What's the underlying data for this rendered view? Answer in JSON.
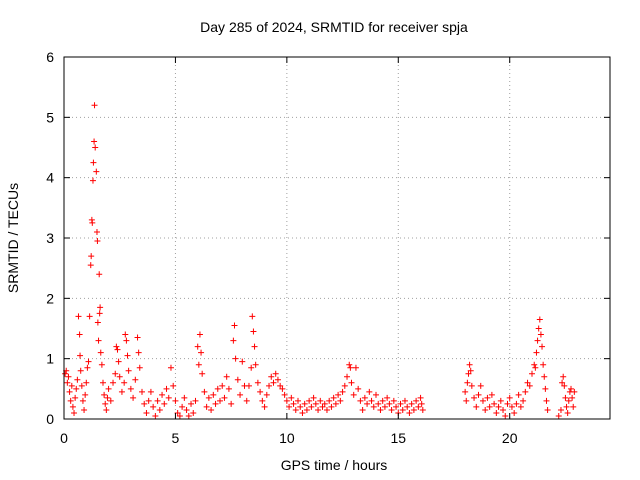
{
  "chart_data": {
    "type": "scatter",
    "title": "Day 285 of 2024, SRMTID for receiver spja",
    "xlabel": "GPS time / hours",
    "ylabel": "SRMTID / TECUs",
    "xlim": [
      0,
      24.5
    ],
    "ylim": [
      0,
      6
    ],
    "xticks": [
      0,
      5,
      10,
      15,
      20
    ],
    "yticks": [
      0,
      1,
      2,
      3,
      4,
      5,
      6
    ],
    "grid": true,
    "marker": "+",
    "color": "#ff0000",
    "series": [
      {
        "name": "SRMTID",
        "points": [
          [
            0.05,
            0.75
          ],
          [
            0.1,
            0.8
          ],
          [
            0.15,
            0.6
          ],
          [
            0.2,
            0.7
          ],
          [
            0.25,
            0.45
          ],
          [
            0.3,
            0.3
          ],
          [
            0.35,
            0.55
          ],
          [
            0.4,
            0.2
          ],
          [
            0.45,
            0.1
          ],
          [
            0.5,
            0.35
          ],
          [
            0.55,
            0.5
          ],
          [
            0.6,
            0.65
          ],
          [
            0.65,
            1.7
          ],
          [
            0.7,
            1.4
          ],
          [
            0.72,
            1.05
          ],
          [
            0.75,
            0.8
          ],
          [
            0.8,
            0.55
          ],
          [
            0.85,
            0.3
          ],
          [
            0.9,
            0.15
          ],
          [
            0.95,
            0.4
          ],
          [
            1.0,
            0.6
          ],
          [
            1.05,
            0.85
          ],
          [
            1.1,
            0.95
          ],
          [
            1.15,
            1.7
          ],
          [
            1.2,
            2.55
          ],
          [
            1.22,
            2.7
          ],
          [
            1.25,
            3.3
          ],
          [
            1.27,
            3.25
          ],
          [
            1.3,
            3.95
          ],
          [
            1.32,
            4.25
          ],
          [
            1.35,
            4.6
          ],
          [
            1.37,
            5.2
          ],
          [
            1.4,
            4.5
          ],
          [
            1.45,
            4.1
          ],
          [
            1.48,
            3.1
          ],
          [
            1.5,
            2.95
          ],
          [
            1.52,
            1.6
          ],
          [
            1.55,
            1.3
          ],
          [
            1.58,
            2.4
          ],
          [
            1.6,
            1.75
          ],
          [
            1.62,
            1.85
          ],
          [
            1.65,
            1.1
          ],
          [
            1.7,
            0.9
          ],
          [
            1.75,
            0.6
          ],
          [
            1.8,
            0.4
          ],
          [
            1.85,
            0.25
          ],
          [
            1.9,
            0.15
          ],
          [
            1.95,
            0.35
          ],
          [
            2.0,
            0.5
          ],
          [
            2.1,
            0.3
          ],
          [
            2.2,
            0.6
          ],
          [
            2.3,
            0.75
          ],
          [
            2.35,
            1.2
          ],
          [
            2.4,
            1.15
          ],
          [
            2.45,
            0.95
          ],
          [
            2.5,
            0.7
          ],
          [
            2.6,
            0.45
          ],
          [
            2.7,
            0.6
          ],
          [
            2.75,
            1.4
          ],
          [
            2.8,
            1.3
          ],
          [
            2.85,
            1.05
          ],
          [
            2.9,
            0.8
          ],
          [
            3.0,
            0.5
          ],
          [
            3.1,
            0.35
          ],
          [
            3.2,
            0.65
          ],
          [
            3.3,
            1.35
          ],
          [
            3.35,
            1.1
          ],
          [
            3.4,
            0.85
          ],
          [
            3.5,
            0.45
          ],
          [
            3.6,
            0.25
          ],
          [
            3.7,
            0.1
          ],
          [
            3.8,
            0.3
          ],
          [
            3.9,
            0.45
          ],
          [
            4.0,
            0.2
          ],
          [
            4.1,
            0.05
          ],
          [
            4.2,
            0.3
          ],
          [
            4.3,
            0.15
          ],
          [
            4.4,
            0.4
          ],
          [
            4.5,
            0.25
          ],
          [
            4.6,
            0.5
          ],
          [
            4.7,
            0.35
          ],
          [
            4.8,
            0.85
          ],
          [
            4.9,
            0.55
          ],
          [
            5.0,
            0.3
          ],
          [
            5.1,
            0.1
          ],
          [
            5.2,
            0.05
          ],
          [
            5.3,
            0.2
          ],
          [
            5.4,
            0.35
          ],
          [
            5.5,
            0.15
          ],
          [
            5.6,
            0.05
          ],
          [
            5.7,
            0.25
          ],
          [
            5.8,
            0.1
          ],
          [
            5.9,
            0.3
          ],
          [
            6.0,
            1.2
          ],
          [
            6.05,
            0.9
          ],
          [
            6.1,
            1.4
          ],
          [
            6.15,
            1.1
          ],
          [
            6.2,
            0.75
          ],
          [
            6.3,
            0.45
          ],
          [
            6.4,
            0.2
          ],
          [
            6.5,
            0.35
          ],
          [
            6.6,
            0.15
          ],
          [
            6.7,
            0.4
          ],
          [
            6.8,
            0.25
          ],
          [
            6.9,
            0.5
          ],
          [
            7.0,
            0.3
          ],
          [
            7.1,
            0.55
          ],
          [
            7.2,
            0.35
          ],
          [
            7.3,
            0.7
          ],
          [
            7.4,
            0.5
          ],
          [
            7.5,
            0.25
          ],
          [
            7.6,
            1.3
          ],
          [
            7.65,
            1.55
          ],
          [
            7.7,
            1.0
          ],
          [
            7.8,
            0.65
          ],
          [
            7.9,
            0.4
          ],
          [
            8.0,
            0.95
          ],
          [
            8.1,
            0.55
          ],
          [
            8.2,
            0.3
          ],
          [
            8.3,
            0.55
          ],
          [
            8.4,
            0.85
          ],
          [
            8.45,
            1.7
          ],
          [
            8.5,
            1.45
          ],
          [
            8.55,
            1.2
          ],
          [
            8.6,
            0.9
          ],
          [
            8.7,
            0.6
          ],
          [
            8.8,
            0.45
          ],
          [
            8.9,
            0.3
          ],
          [
            9.0,
            0.2
          ],
          [
            9.1,
            0.4
          ],
          [
            9.2,
            0.55
          ],
          [
            9.3,
            0.7
          ],
          [
            9.4,
            0.6
          ],
          [
            9.5,
            0.75
          ],
          [
            9.6,
            0.65
          ],
          [
            9.7,
            0.55
          ],
          [
            9.8,
            0.5
          ],
          [
            9.9,
            0.4
          ],
          [
            10.0,
            0.3
          ],
          [
            10.1,
            0.2
          ],
          [
            10.2,
            0.35
          ],
          [
            10.3,
            0.25
          ],
          [
            10.4,
            0.15
          ],
          [
            10.5,
            0.3
          ],
          [
            10.6,
            0.2
          ],
          [
            10.7,
            0.1
          ],
          [
            10.8,
            0.25
          ],
          [
            10.9,
            0.15
          ],
          [
            11.0,
            0.3
          ],
          [
            11.1,
            0.2
          ],
          [
            11.2,
            0.35
          ],
          [
            11.3,
            0.25
          ],
          [
            11.4,
            0.15
          ],
          [
            11.5,
            0.3
          ],
          [
            11.6,
            0.2
          ],
          [
            11.7,
            0.25
          ],
          [
            11.8,
            0.15
          ],
          [
            11.9,
            0.3
          ],
          [
            12.0,
            0.2
          ],
          [
            12.1,
            0.35
          ],
          [
            12.2,
            0.25
          ],
          [
            12.3,
            0.4
          ],
          [
            12.4,
            0.3
          ],
          [
            12.5,
            0.45
          ],
          [
            12.6,
            0.55
          ],
          [
            12.7,
            0.7
          ],
          [
            12.8,
            0.9
          ],
          [
            12.85,
            0.85
          ],
          [
            12.9,
            0.6
          ],
          [
            13.0,
            0.4
          ],
          [
            13.1,
            0.85
          ],
          [
            13.2,
            0.5
          ],
          [
            13.3,
            0.3
          ],
          [
            13.4,
            0.15
          ],
          [
            13.5,
            0.35
          ],
          [
            13.6,
            0.25
          ],
          [
            13.7,
            0.45
          ],
          [
            13.8,
            0.3
          ],
          [
            13.9,
            0.2
          ],
          [
            14.0,
            0.4
          ],
          [
            14.1,
            0.25
          ],
          [
            14.2,
            0.15
          ],
          [
            14.3,
            0.3
          ],
          [
            14.4,
            0.2
          ],
          [
            14.5,
            0.35
          ],
          [
            14.6,
            0.25
          ],
          [
            14.7,
            0.15
          ],
          [
            14.8,
            0.3
          ],
          [
            14.9,
            0.2
          ],
          [
            15.0,
            0.1
          ],
          [
            15.1,
            0.25
          ],
          [
            15.2,
            0.15
          ],
          [
            15.3,
            0.3
          ],
          [
            15.4,
            0.2
          ],
          [
            15.5,
            0.1
          ],
          [
            15.6,
            0.25
          ],
          [
            15.7,
            0.15
          ],
          [
            15.8,
            0.3
          ],
          [
            15.9,
            0.2
          ],
          [
            16.0,
            0.35
          ],
          [
            16.05,
            0.25
          ],
          [
            16.1,
            0.15
          ],
          [
            18.0,
            0.45
          ],
          [
            18.05,
            0.3
          ],
          [
            18.1,
            0.6
          ],
          [
            18.15,
            0.75
          ],
          [
            18.2,
            0.9
          ],
          [
            18.25,
            0.8
          ],
          [
            18.3,
            0.55
          ],
          [
            18.4,
            0.35
          ],
          [
            18.5,
            0.2
          ],
          [
            18.6,
            0.4
          ],
          [
            18.7,
            0.55
          ],
          [
            18.8,
            0.3
          ],
          [
            18.9,
            0.15
          ],
          [
            19.0,
            0.35
          ],
          [
            19.1,
            0.2
          ],
          [
            19.2,
            0.4
          ],
          [
            19.3,
            0.25
          ],
          [
            19.4,
            0.1
          ],
          [
            19.5,
            0.2
          ],
          [
            19.6,
            0.3
          ],
          [
            19.7,
            0.15
          ],
          [
            19.8,
            0.05
          ],
          [
            19.9,
            0.25
          ],
          [
            20.0,
            0.35
          ],
          [
            20.1,
            0.2
          ],
          [
            20.2,
            0.1
          ],
          [
            20.3,
            0.25
          ],
          [
            20.4,
            0.4
          ],
          [
            20.5,
            0.2
          ],
          [
            20.6,
            0.3
          ],
          [
            20.7,
            0.45
          ],
          [
            20.8,
            0.6
          ],
          [
            20.9,
            0.55
          ],
          [
            21.0,
            0.75
          ],
          [
            21.1,
            0.9
          ],
          [
            21.15,
            0.85
          ],
          [
            21.2,
            1.1
          ],
          [
            21.25,
            1.3
          ],
          [
            21.3,
            1.5
          ],
          [
            21.35,
            1.65
          ],
          [
            21.4,
            1.4
          ],
          [
            21.45,
            1.2
          ],
          [
            21.5,
            0.9
          ],
          [
            21.55,
            0.7
          ],
          [
            21.6,
            0.5
          ],
          [
            21.65,
            0.3
          ],
          [
            21.7,
            0.15
          ],
          [
            22.2,
            0.05
          ],
          [
            22.3,
            0.15
          ],
          [
            22.35,
            0.6
          ],
          [
            22.4,
            0.7
          ],
          [
            22.45,
            0.55
          ],
          [
            22.5,
            0.35
          ],
          [
            22.55,
            0.2
          ],
          [
            22.6,
            0.1
          ],
          [
            22.65,
            0.3
          ],
          [
            22.7,
            0.45
          ],
          [
            22.75,
            0.5
          ],
          [
            22.8,
            0.35
          ],
          [
            22.85,
            0.2
          ],
          [
            22.9,
            0.45
          ]
        ]
      }
    ]
  }
}
